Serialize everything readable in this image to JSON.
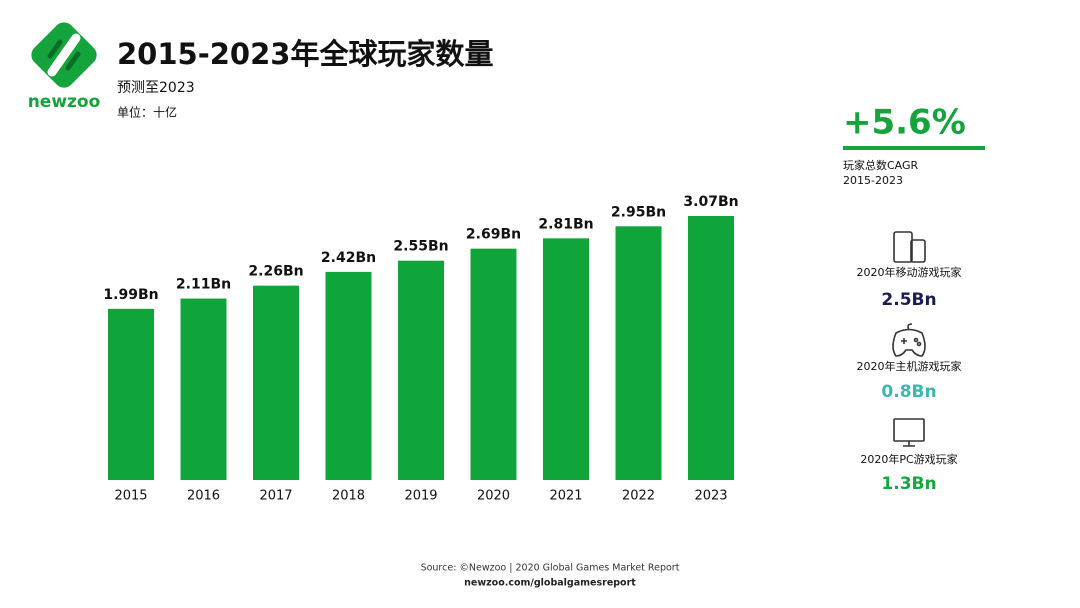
{
  "logo": {
    "text": "newzoo"
  },
  "chart_data": {
    "type": "bar",
    "title": "2015-2023年全球玩家数量",
    "subtitle": "预测至2023",
    "unit": "单位：十亿",
    "categories": [
      "2015",
      "2016",
      "2017",
      "2018",
      "2019",
      "2020",
      "2021",
      "2022",
      "2023"
    ],
    "values": [
      1.99,
      2.11,
      2.26,
      2.42,
      2.55,
      2.69,
      2.81,
      2.95,
      3.07
    ],
    "value_labels": [
      "1.99Bn",
      "2.11Bn",
      "2.26Bn",
      "2.42Bn",
      "2.55Bn",
      "2.69Bn",
      "2.81Bn",
      "2.95Bn",
      "3.07Bn"
    ],
    "color": "#10a53a"
  },
  "side": {
    "cagr": "+5.6%",
    "cagr_label": "玩家总数CAGR",
    "cagr_period": "2015-2023",
    "stats": [
      {
        "label": "2020年移动游戏玩家",
        "value": "2.5Bn",
        "color": "#1c1c50"
      },
      {
        "label": "2020年主机游戏玩家",
        "value": "0.8Bn",
        "color": "#3bb7b0"
      },
      {
        "label": "2020年PC游戏玩家",
        "value": "1.3Bn",
        "color": "#16a83e"
      }
    ]
  },
  "footer": {
    "source": "Source: ©Newzoo | 2020 Global Games Market Report",
    "url": "newzoo.com/globalgamesreport"
  }
}
